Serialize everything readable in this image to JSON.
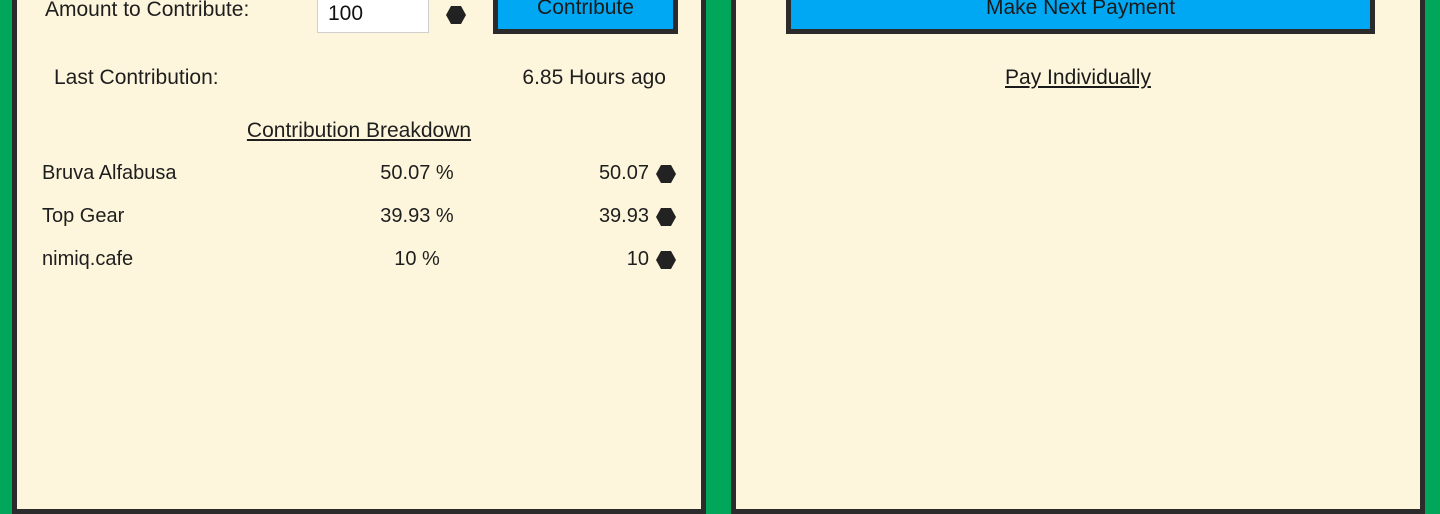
{
  "contribute": {
    "amount_label": "Amount to Contribute:",
    "amount_value": "100",
    "button_label": "Contribute",
    "last_label": "Last Contribution:",
    "last_value": "6.85 Hours ago",
    "breakdown_title": "Contribution Breakdown",
    "breakdown": [
      {
        "name": "Bruva Alfabusa",
        "percent": "50.07 %",
        "amount": "50.07"
      },
      {
        "name": "Top Gear",
        "percent": "39.93 %",
        "amount": "39.93"
      },
      {
        "name": "nimiq.cafe",
        "percent": "10 %",
        "amount": "10"
      }
    ]
  },
  "payment": {
    "next_button_label": "Make Next Payment",
    "pay_individually_label": "Pay Individually"
  },
  "icons": {
    "currency": "nimiq-hexagon-icon"
  },
  "colors": {
    "background": "#00a65a",
    "panel": "#fdf6dc",
    "button": "#00a8f3",
    "border": "#2b2b2b"
  }
}
